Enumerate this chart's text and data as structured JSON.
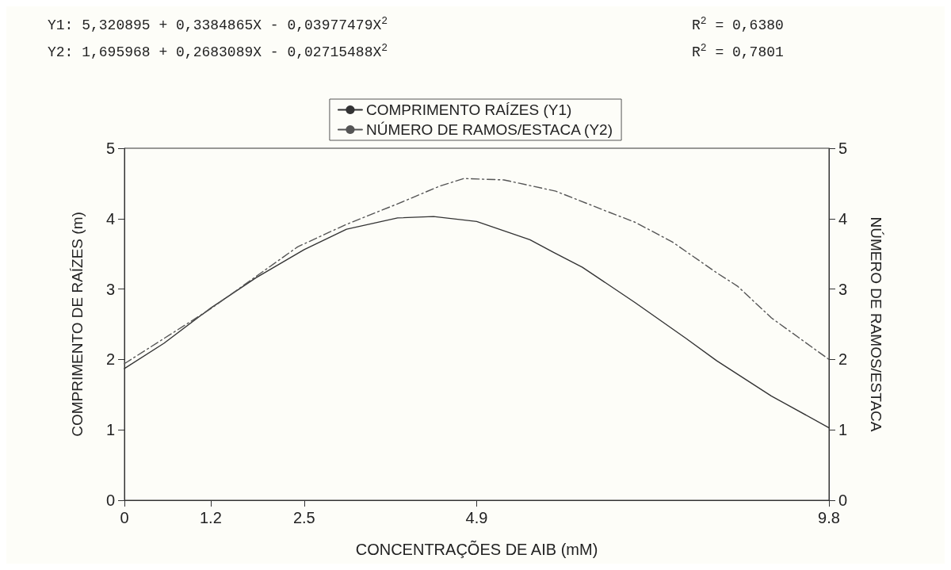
{
  "chart_data": {
    "type": "line",
    "annotations": [
      "Y1: 5,320895 + 0,3384865X - 0,03977479X$^{2}$",
      "R$^{2}$ = 0,6380",
      "Y2: 1,695968 + 0,2683089X - 0,02715488X$^{2}$",
      "R$^{2}$ = 0,7801"
    ],
    "xlabel": "CONCENTRAÇÕES DE AIB (mM)",
    "ylabel": "COMPRIMENTO DE RAÍZES (m)",
    "y2label": "NÚMERO DE RAMOS/ESTACA",
    "series": [
      {
        "name": "COMPRIMENTO RAÍZES (Y1)",
        "color": "#333333",
        "line_style": "solid",
        "x": [
          0,
          0.55,
          1.2,
          1.83,
          2.5,
          3.09,
          3.8,
          4.3,
          4.9,
          5.64,
          5.97,
          6.37,
          7.1,
          7.81,
          8.24,
          9.0,
          9.8
        ],
        "values": [
          1.87,
          2.23,
          2.73,
          3.16,
          3.56,
          3.85,
          4.01,
          4.03,
          3.96,
          3.7,
          3.52,
          3.31,
          2.81,
          2.3,
          1.98,
          1.48,
          1.03
        ]
      },
      {
        "name": "NÚMERO DE RAMOS/ESTACA (Y2)",
        "color": "#555555",
        "line_style": "dashed",
        "x": [
          0,
          1.2,
          2.41,
          3.09,
          3.8,
          4.38,
          4.72,
          5.28,
          6.0,
          6.72,
          7.1,
          7.62,
          8.24,
          8.53,
          9.0,
          9.8
        ],
        "values": [
          1.94,
          2.72,
          3.6,
          3.92,
          4.21,
          4.46,
          4.57,
          4.55,
          4.39,
          4.1,
          3.95,
          3.67,
          3.23,
          3.04,
          2.59,
          2.0
        ]
      }
    ],
    "xlim": [
      0,
      9.8
    ],
    "xticks": [
      0,
      1.2,
      2.5,
      4.9,
      9.8
    ],
    "ylim": [
      0,
      5
    ],
    "yticks": [
      0,
      1,
      2,
      3,
      4,
      5
    ],
    "y2lim": [
      0,
      5
    ],
    "y2ticks": [
      0,
      1,
      2,
      3,
      4,
      5
    ],
    "grid": false,
    "legend": "top",
    "marker": "none"
  }
}
